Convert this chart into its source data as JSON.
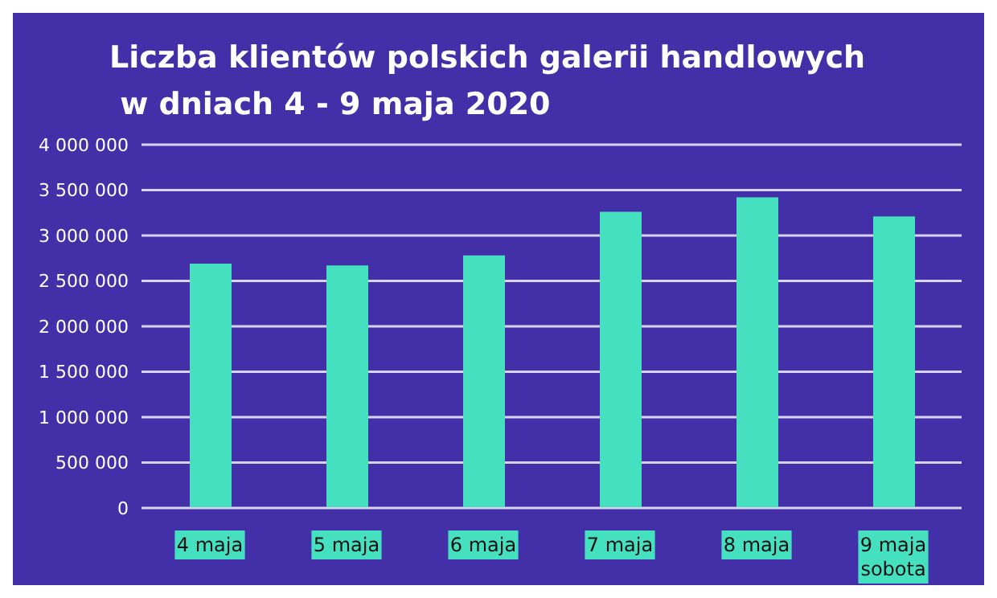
{
  "chart_data": {
    "type": "bar",
    "title": "Liczba klientów polskich galerii handlowych\n w dniach 4 - 9 maja 2020",
    "categories": [
      "4 maja",
      "5 maja",
      "6 maja",
      "7 maja",
      "8 maja",
      "9 maja\nsobota"
    ],
    "values": [
      2690000,
      2670000,
      2780000,
      3260000,
      3420000,
      3210000
    ],
    "color": "#45e0c0",
    "ylim": [
      0,
      4000000
    ],
    "yticks": [
      {
        "value": 0,
        "label": "0"
      },
      {
        "value": 500000,
        "label": "500 000"
      },
      {
        "value": 1000000,
        "label": "1 000 000"
      },
      {
        "value": 1500000,
        "label": "1 500 000"
      },
      {
        "value": 2000000,
        "label": "2 000 000"
      },
      {
        "value": 2500000,
        "label": "2 500 000"
      },
      {
        "value": 3000000,
        "label": "3 000 000"
      },
      {
        "value": 3500000,
        "label": "3 500 000"
      },
      {
        "value": 4000000,
        "label": "4 000 000"
      }
    ],
    "grid": "y"
  }
}
